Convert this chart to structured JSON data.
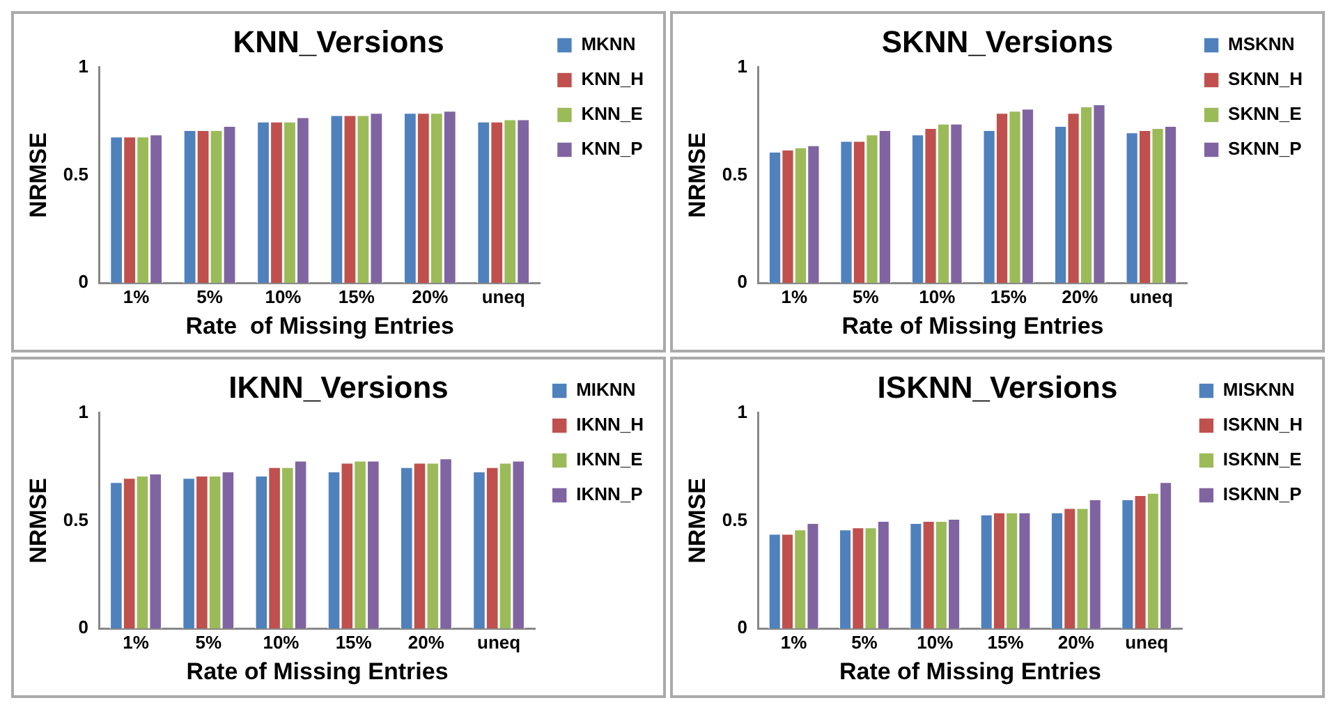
{
  "chart_data": [
    {
      "type": "bar",
      "title": "KNN_Versions",
      "xlabel": "Rate  of Missing Entries",
      "ylabel": "NRMSE",
      "categories": [
        "1%",
        "5%",
        "10%",
        "15%",
        "20%",
        "uneq"
      ],
      "ylim": [
        0,
        1
      ],
      "yticks": [
        0,
        0.5,
        1
      ],
      "grid": false,
      "legend": "top right",
      "series": [
        {
          "name": "MKNN",
          "color": "#4f81bd",
          "values": [
            0.68,
            0.71,
            0.75,
            0.78,
            0.79,
            0.75
          ]
        },
        {
          "name": "KNN_H",
          "color": "#c0504d",
          "values": [
            0.68,
            0.71,
            0.75,
            0.78,
            0.79,
            0.75
          ]
        },
        {
          "name": "KNN_E",
          "color": "#9bbb59",
          "values": [
            0.68,
            0.71,
            0.75,
            0.78,
            0.79,
            0.76
          ]
        },
        {
          "name": "KNN_P",
          "color": "#8064a2",
          "values": [
            0.69,
            0.73,
            0.77,
            0.79,
            0.8,
            0.76
          ]
        }
      ]
    },
    {
      "type": "bar",
      "title": "SKNN_Versions",
      "xlabel": "Rate of Missing Entries",
      "ylabel": "NRMSE",
      "categories": [
        "1%",
        "5%",
        "10%",
        "15%",
        "20%",
        "uneq"
      ],
      "ylim": [
        0,
        1
      ],
      "yticks": [
        0,
        0.5,
        1
      ],
      "grid": false,
      "legend": "top right",
      "series": [
        {
          "name": "MSKNN",
          "color": "#4f81bd",
          "values": [
            0.61,
            0.66,
            0.69,
            0.71,
            0.73,
            0.7
          ]
        },
        {
          "name": "SKNN_H",
          "color": "#c0504d",
          "values": [
            0.62,
            0.66,
            0.72,
            0.79,
            0.79,
            0.71
          ]
        },
        {
          "name": "SKNN_E",
          "color": "#9bbb59",
          "values": [
            0.63,
            0.69,
            0.74,
            0.8,
            0.82,
            0.72
          ]
        },
        {
          "name": "SKNN_P",
          "color": "#8064a2",
          "values": [
            0.64,
            0.71,
            0.74,
            0.81,
            0.83,
            0.73
          ]
        }
      ]
    },
    {
      "type": "bar",
      "title": "IKNN_Versions",
      "xlabel": "Rate of Missing Entries",
      "ylabel": "NRMSE",
      "categories": [
        "1%",
        "5%",
        "10%",
        "15%",
        "20%",
        "uneq"
      ],
      "ylim": [
        0,
        1
      ],
      "yticks": [
        0,
        0.5,
        1
      ],
      "grid": false,
      "legend": "top right",
      "series": [
        {
          "name": "MIKNN",
          "color": "#4f81bd",
          "values": [
            0.68,
            0.7,
            0.71,
            0.73,
            0.75,
            0.73
          ]
        },
        {
          "name": "IKNN_H",
          "color": "#c0504d",
          "values": [
            0.7,
            0.71,
            0.75,
            0.77,
            0.77,
            0.75
          ]
        },
        {
          "name": "IKNN_E",
          "color": "#9bbb59",
          "values": [
            0.71,
            0.71,
            0.75,
            0.78,
            0.77,
            0.77
          ]
        },
        {
          "name": "IKNN_P",
          "color": "#8064a2",
          "values": [
            0.72,
            0.73,
            0.78,
            0.78,
            0.79,
            0.78
          ]
        }
      ]
    },
    {
      "type": "bar",
      "title": "ISKNN_Versions",
      "xlabel": "Rate of Missing Entries",
      "ylabel": "NRMSE",
      "categories": [
        "1%",
        "5%",
        "10%",
        "15%",
        "20%",
        "uneq"
      ],
      "ylim": [
        0,
        1
      ],
      "yticks": [
        0,
        0.5,
        1
      ],
      "grid": false,
      "legend": "top right",
      "series": [
        {
          "name": "MISKNN",
          "color": "#4f81bd",
          "values": [
            0.44,
            0.46,
            0.49,
            0.53,
            0.54,
            0.6
          ]
        },
        {
          "name": "ISKNN_H",
          "color": "#c0504d",
          "values": [
            0.44,
            0.47,
            0.5,
            0.54,
            0.56,
            0.62
          ]
        },
        {
          "name": "ISKNN_E",
          "color": "#9bbb59",
          "values": [
            0.46,
            0.47,
            0.5,
            0.54,
            0.56,
            0.63
          ]
        },
        {
          "name": "ISKNN_P",
          "color": "#8064a2",
          "values": [
            0.49,
            0.5,
            0.51,
            0.54,
            0.6,
            0.68
          ]
        }
      ]
    }
  ]
}
